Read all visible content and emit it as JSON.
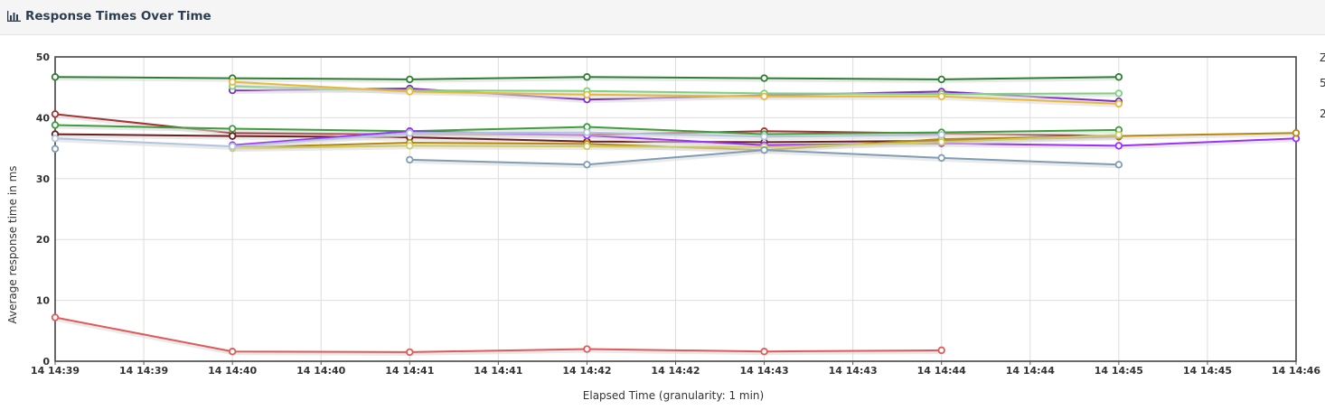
{
  "panel": {
    "title": "Response Times Over Time",
    "icon": "bar-chart-icon"
  },
  "chart_data": {
    "type": "line",
    "title": "",
    "xlabel": "Elapsed Time (granularity: 1 min)",
    "ylabel": "Average response time in ms",
    "ylim": [
      0,
      50
    ],
    "y_ticks": [
      0,
      10,
      20,
      30,
      40,
      50
    ],
    "x_ticks": [
      "14 14:39",
      "14 14:39",
      "14 14:40",
      "14 14:40",
      "14 14:41",
      "14 14:41",
      "14 14:42",
      "14 14:42",
      "14 14:43",
      "14 14:43",
      "14 14:44",
      "14 14:44",
      "14 14:45",
      "14 14:45",
      "14 14:46"
    ],
    "x_categories": [
      "14 14:39",
      "14 14:40",
      "14 14:41",
      "14 14:42",
      "14 14:43",
      "14 14:44",
      "14 14:45",
      "14 14:46"
    ],
    "grid": true,
    "legend_fragments": [
      "Z",
      "5",
      "2"
    ],
    "series": [
      {
        "color": "#2e7d32",
        "values": [
          46.7,
          46.5,
          46.3,
          46.7,
          46.5,
          46.3,
          46.7,
          null
        ]
      },
      {
        "color": "#7b2fbe",
        "values": [
          null,
          44.5,
          44.8,
          43.0,
          43.7,
          44.3,
          42.7,
          null
        ]
      },
      {
        "color": "#7fd07f",
        "values": [
          null,
          45.2,
          44.5,
          44.4,
          44.0,
          43.9,
          44.0,
          null
        ]
      },
      {
        "color": "#e8b83a",
        "values": [
          null,
          45.9,
          44.3,
          43.8,
          43.5,
          43.5,
          42.3,
          null
        ]
      },
      {
        "color": "#a83232",
        "values": [
          40.6,
          37.5,
          37.3,
          37.2,
          37.8,
          37.4,
          37.0,
          null
        ]
      },
      {
        "color": "#3e9e3e",
        "values": [
          38.8,
          38.2,
          37.8,
          38.5,
          37.3,
          37.6,
          38.0,
          null
        ]
      },
      {
        "color": "#6b1f1f",
        "values": [
          37.3,
          37.0,
          36.8,
          36.1,
          36.0,
          36.2,
          36.9,
          null
        ]
      },
      {
        "color": "#9b30ff",
        "values": [
          null,
          35.5,
          37.8,
          37.1,
          35.5,
          35.8,
          35.4,
          36.6
        ]
      },
      {
        "color": "#b8860b",
        "values": [
          null,
          35.1,
          35.9,
          35.7,
          34.7,
          36.5,
          37.0,
          37.5
        ]
      },
      {
        "color": "#cccc66",
        "values": [
          null,
          35.0,
          35.4,
          35.3,
          35.2,
          36.0,
          37.2,
          null
        ]
      },
      {
        "color": "#b0c4de",
        "values": [
          36.6,
          35.3,
          37.5,
          37.6,
          36.9,
          37.2,
          null,
          null
        ]
      },
      {
        "color": "#7f9db3",
        "values": [
          34.9,
          null,
          33.1,
          32.3,
          34.7,
          33.4,
          32.3,
          null
        ]
      },
      {
        "color": "#e05a5a",
        "values": [
          7.2,
          1.6,
          1.5,
          2.0,
          1.6,
          1.8,
          null,
          null
        ]
      }
    ]
  }
}
